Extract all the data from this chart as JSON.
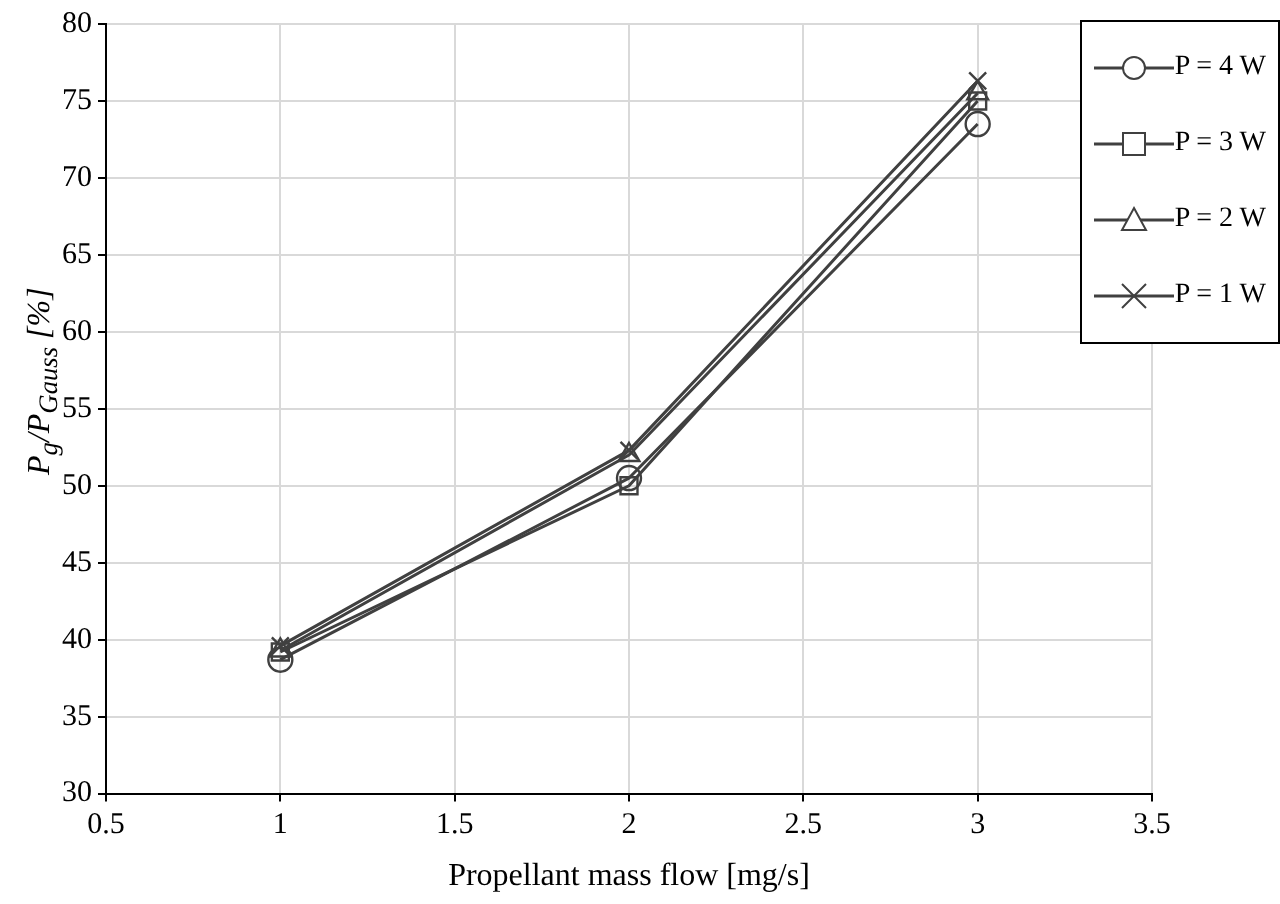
{
  "chart_data": {
    "type": "line",
    "xlabel": "Propellant mass flow [mg/s]",
    "ylabel": "P$_{g}$/P$_{Gauss}$  [%]",
    "x": [
      1,
      2,
      3
    ],
    "series": [
      {
        "name": "P = 4 W",
        "color": "#404040",
        "marker": "circle",
        "values": [
          38.7,
          50.5,
          73.5
        ]
      },
      {
        "name": "P = 3 W",
        "color": "#404040",
        "marker": "square",
        "values": [
          39.2,
          50.0,
          75.0
        ]
      },
      {
        "name": "P = 2 W",
        "color": "#404040",
        "marker": "triangle",
        "values": [
          39.3,
          52.0,
          75.5
        ]
      },
      {
        "name": "P = 1 W",
        "color": "#404040",
        "marker": "cross",
        "values": [
          39.6,
          52.3,
          76.3
        ]
      }
    ],
    "xlim": [
      0.5,
      3.5
    ],
    "xticks": [
      0.5,
      1,
      1.5,
      2,
      2.5,
      3,
      3.5
    ],
    "ylim": [
      30,
      80
    ],
    "yticks": [
      30,
      35,
      40,
      45,
      50,
      55,
      60,
      65,
      70,
      75,
      80
    ],
    "grid": true,
    "legend": "top right",
    "line_style": "solid"
  }
}
